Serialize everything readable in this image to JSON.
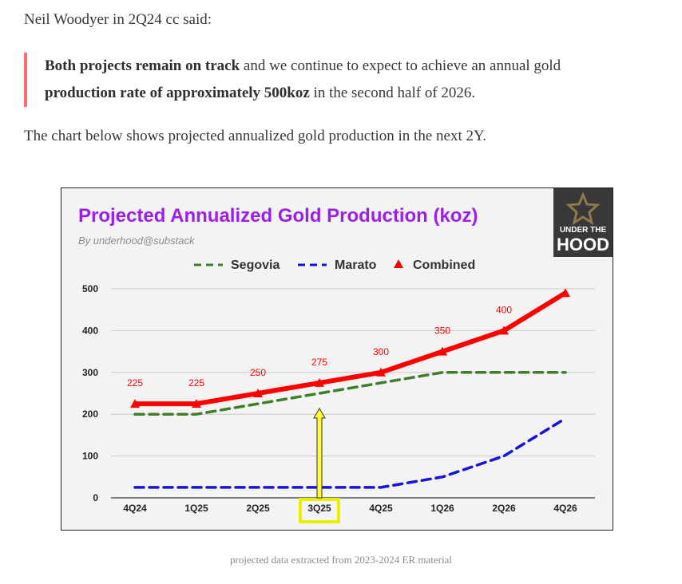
{
  "article": {
    "intro": "Neil Woodyer in 2Q24 cc said:",
    "quote_bold1": "Both projects remain on track",
    "quote_text1": " and we continue to expect to achieve an annual gold ",
    "quote_bold2": "production rate of approximately 500koz",
    "quote_text2": " in the second half of 2026.",
    "lead": "The chart below shows projected annualized gold production in the next 2Y.",
    "caption": "projected data extracted from 2023-2024 ER material"
  },
  "logo": {
    "line1": "UNDER THE",
    "line2": "HOOD"
  },
  "colors": {
    "title": "#9b1fe8",
    "segovia": "#3f7f2a",
    "marato": "#1414e0",
    "combined": "#ff0000",
    "arrow_fill": "#ffff33",
    "highlight_box": "#e8f000",
    "plot_bg": "#f3f3f3"
  },
  "chart_data": {
    "type": "line",
    "title": "Projected Annualized Gold Production (koz)",
    "subtitle": "By underhood@substack",
    "xlabel": "",
    "ylabel": "",
    "categories": [
      "4Q24",
      "1Q25",
      "2Q25",
      "3Q25",
      "4Q25",
      "1Q26",
      "2Q26",
      "4Q26"
    ],
    "ylim": [
      0,
      500
    ],
    "yticks": [
      0,
      100,
      200,
      300,
      400,
      500
    ],
    "grid": true,
    "legend": "top-center",
    "series": [
      {
        "name": "Segovia",
        "style": "dashed",
        "values": [
          200,
          200,
          225,
          250,
          275,
          300,
          300,
          300
        ]
      },
      {
        "name": "Marato",
        "style": "dashed",
        "values": [
          25,
          25,
          25,
          25,
          25,
          50,
          100,
          190
        ]
      },
      {
        "name": "Combined",
        "style": "solid-triangle",
        "values": [
          225,
          225,
          250,
          275,
          300,
          350,
          400,
          490
        ]
      }
    ],
    "data_labels": [
      "225",
      "225",
      "250",
      "275",
      "300",
      "350",
      "400"
    ],
    "highlight_category": "3Q25"
  }
}
